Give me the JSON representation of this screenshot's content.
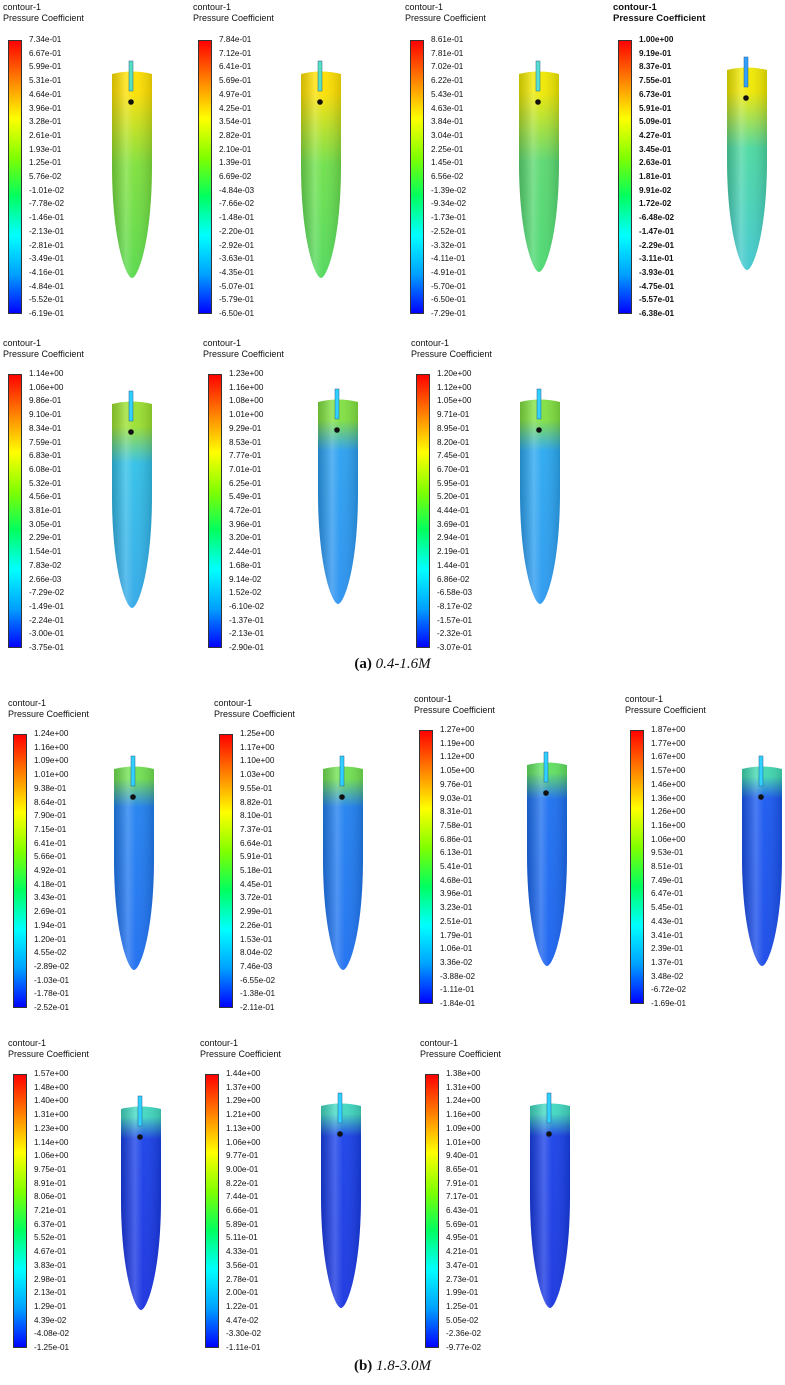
{
  "panels": [
    {
      "title": "contour-1",
      "subtitle": "Pressure Coefficient",
      "labels": [
        "7.34e-01",
        "6.67e-01",
        "5.99e-01",
        "5.31e-01",
        "4.64e-01",
        "3.96e-01",
        "3.28e-01",
        "2.61e-01",
        "1.93e-01",
        "1.25e-01",
        "5.76e-02",
        "-1.01e-02",
        "-7.78e-02",
        "-1.46e-01",
        "-2.13e-01",
        "-2.81e-01",
        "-3.49e-01",
        "-4.16e-01",
        "-4.84e-01",
        "-5.52e-01",
        "-6.19e-01"
      ]
    },
    {
      "title": "contour-1",
      "subtitle": "Pressure Coefficient",
      "labels": [
        "7.84e-01",
        "7.12e-01",
        "6.41e-01",
        "5.69e-01",
        "4.97e-01",
        "4.25e-01",
        "3.54e-01",
        "2.82e-01",
        "2.10e-01",
        "1.39e-01",
        "6.69e-02",
        "-4.84e-03",
        "-7.66e-02",
        "-1.48e-01",
        "-2.20e-01",
        "-2.92e-01",
        "-3.63e-01",
        "-4.35e-01",
        "-5.07e-01",
        "-5.79e-01",
        "-6.50e-01"
      ]
    },
    {
      "title": "contour-1",
      "subtitle": "Pressure Coefficient",
      "labels": [
        "8.61e-01",
        "7.81e-01",
        "7.02e-01",
        "6.22e-01",
        "5.43e-01",
        "4.63e-01",
        "3.84e-01",
        "3.04e-01",
        "2.25e-01",
        "1.45e-01",
        "6.56e-02",
        "-1.39e-02",
        "-9.34e-02",
        "-1.73e-01",
        "-2.52e-01",
        "-3.32e-01",
        "-4.11e-01",
        "-4.91e-01",
        "-5.70e-01",
        "-6.50e-01",
        "-7.29e-01"
      ]
    },
    {
      "title": "contour-1",
      "subtitle": "Pressure Coefficient",
      "labels": [
        "1.00e+00",
        "9.19e-01",
        "8.37e-01",
        "7.55e-01",
        "6.73e-01",
        "5.91e-01",
        "5.09e-01",
        "4.27e-01",
        "3.45e-01",
        "2.63e-01",
        "1.81e-01",
        "9.91e-02",
        "1.72e-02",
        "-6.48e-02",
        "-1.47e-01",
        "-2.29e-01",
        "-3.11e-01",
        "-3.93e-01",
        "-4.75e-01",
        "-5.57e-01",
        "-6.38e-01"
      ]
    },
    {
      "title": "contour-1",
      "subtitle": "Pressure Coefficient",
      "labels": [
        "1.14e+00",
        "1.06e+00",
        "9.86e-01",
        "9.10e-01",
        "8.34e-01",
        "7.59e-01",
        "6.83e-01",
        "6.08e-01",
        "5.32e-01",
        "4.56e-01",
        "3.81e-01",
        "3.05e-01",
        "2.29e-01",
        "1.54e-01",
        "7.83e-02",
        "2.66e-03",
        "-7.29e-02",
        "-1.49e-01",
        "-2.24e-01",
        "-3.00e-01",
        "-3.75e-01"
      ]
    },
    {
      "title": "contour-1",
      "subtitle": "Pressure Coefficient",
      "labels": [
        "1.23e+00",
        "1.16e+00",
        "1.08e+00",
        "1.01e+00",
        "9.29e-01",
        "8.53e-01",
        "7.77e-01",
        "7.01e-01",
        "6.25e-01",
        "5.49e-01",
        "4.72e-01",
        "3.96e-01",
        "3.20e-01",
        "2.44e-01",
        "1.68e-01",
        "9.14e-02",
        "1.52e-02",
        "-6.10e-02",
        "-1.37e-01",
        "-2.13e-01",
        "-2.90e-01"
      ]
    },
    {
      "title": "contour-1",
      "subtitle": "Pressure Coefficient",
      "labels": [
        "1.20e+00",
        "1.12e+00",
        "1.05e+00",
        "9.71e-01",
        "8.95e-01",
        "8.20e-01",
        "7.45e-01",
        "6.70e-01",
        "5.95e-01",
        "5.20e-01",
        "4.44e-01",
        "3.69e-01",
        "2.94e-01",
        "2.19e-01",
        "1.44e-01",
        "6.86e-02",
        "-6.58e-03",
        "-8.17e-02",
        "-1.57e-01",
        "-2.32e-01",
        "-3.07e-01"
      ]
    },
    {
      "title": "contour-1",
      "subtitle": "Pressure Coefficient",
      "labels": [
        "1.24e+00",
        "1.16e+00",
        "1.09e+00",
        "1.01e+00",
        "9.38e-01",
        "8.64e-01",
        "7.90e-01",
        "7.15e-01",
        "6.41e-01",
        "5.66e-01",
        "4.92e-01",
        "4.18e-01",
        "3.43e-01",
        "2.69e-01",
        "1.94e-01",
        "1.20e-01",
        "4.55e-02",
        "-2.89e-02",
        "-1.03e-01",
        "-1.78e-01",
        "-2.52e-01"
      ]
    },
    {
      "title": "contour-1",
      "subtitle": "Pressure Coefficient",
      "labels": [
        "1.25e+00",
        "1.17e+00",
        "1.10e+00",
        "1.03e+00",
        "9.55e-01",
        "8.82e-01",
        "8.10e-01",
        "7.37e-01",
        "6.64e-01",
        "5.91e-01",
        "5.18e-01",
        "4.45e-01",
        "3.72e-01",
        "2.99e-01",
        "2.26e-01",
        "1.53e-01",
        "8.04e-02",
        "7.46e-03",
        "-6.55e-02",
        "-1.38e-01",
        "-2.11e-01"
      ]
    },
    {
      "title": "contour-1",
      "subtitle": "Pressure Coefficient",
      "labels": [
        "1.27e+00",
        "1.19e+00",
        "1.12e+00",
        "1.05e+00",
        "9.76e-01",
        "9.03e-01",
        "8.31e-01",
        "7.58e-01",
        "6.86e-01",
        "6.13e-01",
        "5.41e-01",
        "4.68e-01",
        "3.96e-01",
        "3.23e-01",
        "2.51e-01",
        "1.79e-01",
        "1.06e-01",
        "3.36e-02",
        "-3.88e-02",
        "-1.11e-01",
        "-1.84e-01"
      ]
    },
    {
      "title": "contour-1",
      "subtitle": "Pressure Coefficient",
      "labels": [
        "1.87e+00",
        "1.77e+00",
        "1.67e+00",
        "1.57e+00",
        "1.46e+00",
        "1.36e+00",
        "1.26e+00",
        "1.16e+00",
        "1.06e+00",
        "9.53e-01",
        "8.51e-01",
        "7.49e-01",
        "6.47e-01",
        "5.45e-01",
        "4.43e-01",
        "3.41e-01",
        "2.39e-01",
        "1.37e-01",
        "3.48e-02",
        "-6.72e-02",
        "-1.69e-01"
      ]
    },
    {
      "title": "contour-1",
      "subtitle": "Pressure Coefficient",
      "labels": [
        "1.57e+00",
        "1.48e+00",
        "1.40e+00",
        "1.31e+00",
        "1.23e+00",
        "1.14e+00",
        "1.06e+00",
        "9.75e-01",
        "8.91e-01",
        "8.06e-01",
        "7.21e-01",
        "6.37e-01",
        "5.52e-01",
        "4.67e-01",
        "3.83e-01",
        "2.98e-01",
        "2.13e-01",
        "1.29e-01",
        "4.39e-02",
        "-4.08e-02",
        "-1.25e-01"
      ]
    },
    {
      "title": "contour-1",
      "subtitle": "Pressure Coefficient",
      "labels": [
        "1.44e+00",
        "1.37e+00",
        "1.29e+00",
        "1.21e+00",
        "1.13e+00",
        "1.06e+00",
        "9.77e-01",
        "9.00e-01",
        "8.22e-01",
        "7.44e-01",
        "6.66e-01",
        "5.89e-01",
        "5.11e-01",
        "4.33e-01",
        "3.56e-01",
        "2.78e-01",
        "2.00e-01",
        "1.22e-01",
        "4.47e-02",
        "-3.30e-02",
        "-1.11e-01"
      ]
    },
    {
      "title": "contour-1",
      "subtitle": "Pressure Coefficient",
      "labels": [
        "1.38e+00",
        "1.31e+00",
        "1.24e+00",
        "1.16e+00",
        "1.09e+00",
        "1.01e+00",
        "9.40e-01",
        "8.65e-01",
        "7.91e-01",
        "7.17e-01",
        "6.43e-01",
        "5.69e-01",
        "4.95e-01",
        "4.21e-01",
        "3.47e-01",
        "2.73e-01",
        "1.99e-01",
        "1.25e-01",
        "5.05e-02",
        "-2.36e-02",
        "-9.77e-02"
      ]
    }
  ],
  "captions": {
    "a": {
      "tag": "(a)",
      "text": "0.4-1.6M"
    },
    "b": {
      "tag": "(b)",
      "text": "1.8-3.0M"
    }
  },
  "colors": {
    "rainbow": [
      "#0000ff",
      "#00a0ff",
      "#00ffff",
      "#00ff60",
      "#80ff00",
      "#ffff00",
      "#ff8000",
      "#ff0000"
    ]
  }
}
